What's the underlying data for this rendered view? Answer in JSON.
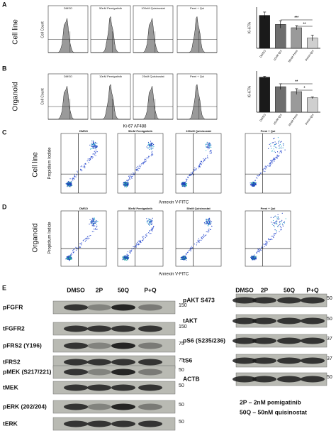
{
  "panels": {
    "A": {
      "letter": "A",
      "row_label": "Cell line",
      "histograms": {
        "y_label": "Cell Count",
        "titles": [
          "DMSO",
          "50nM Pemigatinib",
          "100nM Quisinostat",
          "Pemi + Qui"
        ]
      },
      "bar_chart": {
        "type": "bar",
        "y_label": "Ki-67%",
        "categories": [
          "DMSO",
          "10nM Qui",
          "50nM Pemi",
          "Pemi+Qui"
        ],
        "values": [
          80,
          58,
          50,
          25
        ],
        "errors": [
          8,
          9,
          5,
          7
        ],
        "colors": [
          "#1a1a1a",
          "#6e6e6e",
          "#9a9a9a",
          "#cfcfcf"
        ],
        "ylim": [
          0,
          100
        ],
        "significance": [
          "***",
          "**"
        ]
      }
    },
    "B": {
      "letter": "B",
      "row_label": "Organoid",
      "histograms": {
        "y_label": "Cell Count",
        "x_label": "Ki-67 AF488",
        "titles": [
          "DMSO",
          "10nM Pemigatinib",
          "25nM Quisinostat",
          "Pemi + Qui"
        ]
      },
      "bar_chart": {
        "type": "bar",
        "y_label": "Ki-67%",
        "categories": [
          "DMSO",
          "25nM Qui",
          "10nM Pemi",
          "Pemi+Qui"
        ],
        "values": [
          85,
          62,
          50,
          35
        ],
        "errors": [
          2,
          7,
          7,
          2
        ],
        "colors": [
          "#1a1a1a",
          "#6e6e6e",
          "#9a9a9a",
          "#cfcfcf"
        ],
        "ylim": [
          0,
          100
        ],
        "significance": [
          "**",
          "*"
        ]
      }
    },
    "C": {
      "letter": "C",
      "row_label": "Cell line",
      "y_label": "Propidium Iodide",
      "x_label": "Annexin V-FITC",
      "titles": [
        "DMSO",
        "50nM Pemigatinib",
        "100nM Quisinostat",
        "Pemi + Qui"
      ]
    },
    "D": {
      "letter": "D",
      "row_label": "Organoid",
      "y_label": "Propidium Iodide",
      "x_label": "Annexin V-FITC",
      "titles": [
        "DMSO",
        "50nM Pemigatinib",
        "50nM Quisinostat",
        "Pemi + Qui"
      ]
    },
    "E": {
      "letter": "E",
      "left": {
        "lanes": [
          "DMSO",
          "2P",
          "50Q",
          "P+Q"
        ],
        "rows": [
          {
            "label": "pFGFR",
            "marker": "150"
          },
          {
            "label": "tFGFR2",
            "marker": "150"
          },
          {
            "label": "pFRS2 (Y196)",
            "marker": "75"
          },
          {
            "label": "tFRS2",
            "marker": "75"
          },
          {
            "label": "pMEK (S217/221)",
            "marker": "50"
          },
          {
            "label": "tMEK",
            "marker": "50"
          },
          {
            "label": "pERK (202/204)",
            "marker": "50"
          },
          {
            "label": "tERK",
            "marker": "50"
          }
        ]
      },
      "right": {
        "lanes": [
          "DMSO",
          "2P",
          "50Q",
          "P+Q"
        ],
        "rows": [
          {
            "label": "pAKT S473",
            "marker": "50"
          },
          {
            "label": "tAKT",
            "marker": "50"
          },
          {
            "label": "pS6 (S235/236)",
            "marker": "37"
          },
          {
            "label": "tS6",
            "marker": "37"
          },
          {
            "label": "ACTB",
            "marker": "50"
          }
        ]
      },
      "legend": [
        "2P – 2nM pemigatinib",
        "50Q – 50nM quisinostat"
      ]
    }
  }
}
